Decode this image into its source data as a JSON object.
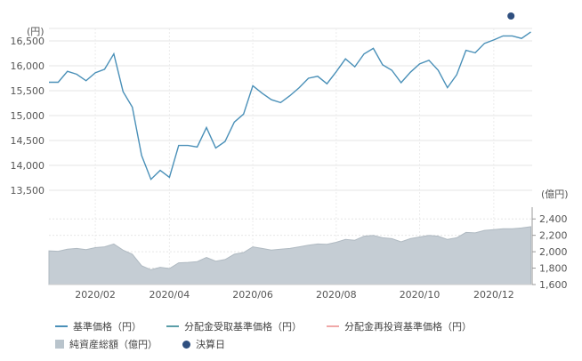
{
  "chart_data": {
    "type": "line",
    "x": [
      "2020-01-01",
      "2020-01-08",
      "2020-01-15",
      "2020-01-22",
      "2020-01-29",
      "2020-02-05",
      "2020-02-12",
      "2020-02-19",
      "2020-02-26",
      "2020-03-04",
      "2020-03-11",
      "2020-03-18",
      "2020-03-25",
      "2020-04-01",
      "2020-04-08",
      "2020-04-15",
      "2020-04-22",
      "2020-04-29",
      "2020-05-06",
      "2020-05-13",
      "2020-05-20",
      "2020-05-27",
      "2020-06-03",
      "2020-06-10",
      "2020-06-17",
      "2020-06-24",
      "2020-07-01",
      "2020-07-08",
      "2020-07-15",
      "2020-07-22",
      "2020-07-29",
      "2020-08-05",
      "2020-08-12",
      "2020-08-19",
      "2020-08-26",
      "2020-09-02",
      "2020-09-09",
      "2020-09-16",
      "2020-09-23",
      "2020-09-30",
      "2020-10-07",
      "2020-10-14",
      "2020-10-21",
      "2020-10-28",
      "2020-11-04",
      "2020-11-11",
      "2020-11-18",
      "2020-11-25",
      "2020-12-02",
      "2020-12-09",
      "2020-12-16",
      "2020-12-23",
      "2020-12-30"
    ],
    "series": [
      {
        "name": "基準価格（円）",
        "axis": "left",
        "color": "#4a90b8",
        "values": [
          15670,
          15670,
          15890,
          15830,
          15700,
          15860,
          15930,
          16240,
          15480,
          15170,
          14200,
          13720,
          13900,
          13760,
          14400,
          14400,
          14370,
          14760,
          14350,
          14480,
          14870,
          15030,
          15600,
          15450,
          15320,
          15260,
          15400,
          15560,
          15750,
          15790,
          15640,
          15880,
          16140,
          15980,
          16240,
          16350,
          16020,
          15910,
          15660,
          15870,
          16040,
          16110,
          15910,
          15560,
          15820,
          16310,
          16260,
          16450,
          16520,
          16600,
          16600,
          16550,
          16680
        ]
      },
      {
        "name": "純資産総額（億円）",
        "axis": "right",
        "type": "area",
        "color": "#c5cdd4",
        "values": [
          2010,
          2005,
          2030,
          2040,
          2025,
          2050,
          2060,
          2095,
          2020,
          1970,
          1830,
          1780,
          1810,
          1795,
          1865,
          1870,
          1880,
          1930,
          1885,
          1905,
          1970,
          1990,
          2060,
          2040,
          2020,
          2030,
          2040,
          2060,
          2080,
          2095,
          2090,
          2115,
          2150,
          2140,
          2190,
          2200,
          2170,
          2160,
          2120,
          2160,
          2180,
          2200,
          2190,
          2150,
          2170,
          2235,
          2230,
          2260,
          2270,
          2280,
          2280,
          2290,
          2305
        ]
      }
    ],
    "markers": {
      "name": "決算日",
      "x": [
        "2020-12-15"
      ],
      "color": "#2f4f7f"
    },
    "y_left": {
      "unit": "(円)",
      "ylim": [
        13250,
        16750
      ],
      "ticks": [
        13500,
        14000,
        14500,
        15000,
        15500,
        16000,
        16500
      ]
    },
    "y_right": {
      "unit": "(億円)",
      "ylim": [
        1600,
        2500
      ],
      "ticks": [
        1600,
        1800,
        2000,
        2200,
        2400
      ]
    },
    "x_ticks": [
      {
        "x": "2020-02-05",
        "label": "2020/02"
      },
      {
        "x": "2020-04-01",
        "label": "2020/04"
      },
      {
        "x": "2020-06-03",
        "label": "2020/06"
      },
      {
        "x": "2020-08-05",
        "label": "2020/08"
      },
      {
        "x": "2020-10-07",
        "label": "2020/10"
      },
      {
        "x": "2020-12-02",
        "label": "2020/12"
      }
    ],
    "grid": true
  },
  "legend": {
    "items": [
      {
        "label": "基準価格（円）",
        "shape": "line",
        "color": "#4a90b8"
      },
      {
        "label": "分配金受取基準価格（円）",
        "shape": "line",
        "color": "#5b9ea8"
      },
      {
        "label": "分配金再投資基準価格（円）",
        "shape": "line",
        "color": "#f0a8a8"
      },
      {
        "label": "純資産総額（億円）",
        "shape": "box",
        "color": "#b9c4cc"
      },
      {
        "label": "決算日",
        "shape": "dot",
        "color": "#2f4f7f"
      }
    ]
  }
}
